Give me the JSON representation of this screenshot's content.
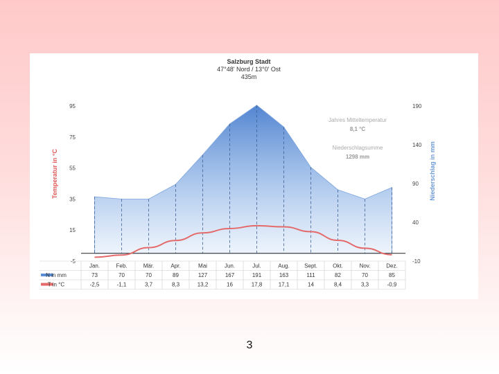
{
  "slide": {
    "page_number": "3"
  },
  "chart_data": {
    "type": "area",
    "title": "Salzburg Stadt",
    "subtitle": "47°48' Nord / 13°0' Ost",
    "elevation": "435m",
    "categories": [
      "Jan.",
      "Feb.",
      "Mär.",
      "Apr.",
      "Mai",
      "Jun.",
      "Jul.",
      "Aug.",
      "Sept.",
      "Okt.",
      "Nov.",
      "Dez."
    ],
    "series": [
      {
        "name": "N in mm",
        "kind": "area",
        "axis": "right",
        "color": "#5b8ed6",
        "values": [
          73,
          70,
          70,
          89,
          127,
          167,
          191,
          163,
          111,
          82,
          70,
          85
        ]
      },
      {
        "name": "T in °C",
        "kind": "line",
        "axis": "left",
        "color": "#e46a6a",
        "values": [
          -2.5,
          -1.1,
          3.7,
          8.3,
          13.2,
          16,
          17.8,
          17.1,
          14,
          8.4,
          3.3,
          -0.9
        ]
      }
    ],
    "table_display": {
      "N in mm": [
        "73",
        "70",
        "70",
        "89",
        "127",
        "167",
        "191",
        "163",
        "111",
        "82",
        "70",
        "85"
      ],
      "T in °C": [
        "-2,5",
        "-1,1",
        "3,7",
        "8,3",
        "13,2",
        "16",
        "17,8",
        "17,1",
        "14",
        "8,4",
        "3,3",
        "-0,9"
      ]
    },
    "ylabel_left": "Temperatur in °C",
    "ylabel_right": "Niederschlag in mm",
    "ylim_left": [
      -5,
      95
    ],
    "ylim_right": [
      -10,
      190
    ],
    "yticks_left": [
      "95",
      "75",
      "55",
      "35",
      "15",
      "-5"
    ],
    "yticks_right": [
      "190",
      "140",
      "90",
      "40",
      "-10"
    ],
    "annotations": [
      {
        "label": "Jahres Mitteltemperatur",
        "value": "8,1 °C"
      },
      {
        "label": "Niederschlagsumme",
        "value": "1298 mm"
      }
    ],
    "colors": {
      "temp_axis": "#e05a5a",
      "precip_axis": "#6f9ad8",
      "precip_fill": "#5b8ed6",
      "temp_line": "#e46a6a"
    }
  }
}
